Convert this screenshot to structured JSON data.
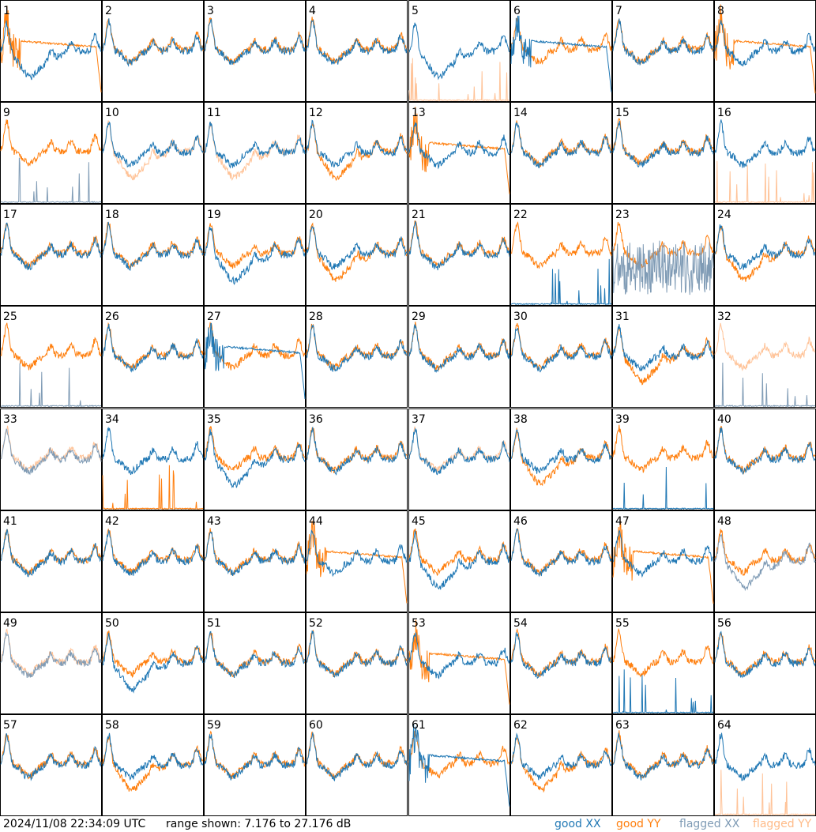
{
  "footer": {
    "timestamp": "2024/11/08 22:34:09 UTC",
    "range_label": "range shown: 7.176 to 27.176 dB",
    "legend": [
      "good XX",
      "good YY",
      "flagged XX",
      "flagged YY"
    ]
  },
  "colors": {
    "good_xx": "#1f77b4",
    "good_yy": "#ff7f0e",
    "flagged_xx": "#7f9bb5",
    "flagged_yy": "#ffc398"
  },
  "chart_data": {
    "type": "line",
    "grid": "8x8 small multiples, one panel per input, spectra of power (dB)",
    "ylim": [
      7.176,
      27.176
    ],
    "panels": [
      {
        "label": "1",
        "xx": "low",
        "yy": "droop"
      },
      {
        "label": "2",
        "xx": "good",
        "yy": "good"
      },
      {
        "label": "3",
        "xx": "good",
        "yy": "good"
      },
      {
        "label": "4",
        "xx": "good",
        "yy": "good"
      },
      {
        "label": "5",
        "xx": "low",
        "yy": "spiky_flagged"
      },
      {
        "label": "6",
        "xx": "droop",
        "yy": "good"
      },
      {
        "label": "7",
        "xx": "good",
        "yy": "good"
      },
      {
        "label": "8",
        "xx": "good",
        "yy": "droop"
      },
      {
        "label": "9",
        "xx": "spiky_flagged",
        "yy": "good"
      },
      {
        "label": "10",
        "xx": "good",
        "yy": "low_flagged"
      },
      {
        "label": "11",
        "xx": "good",
        "yy": "low_flagged"
      },
      {
        "label": "12",
        "xx": "good",
        "yy": "low"
      },
      {
        "label": "13",
        "xx": "good",
        "yy": "droop"
      },
      {
        "label": "14",
        "xx": "good",
        "yy": "good"
      },
      {
        "label": "15",
        "xx": "good",
        "yy": "good"
      },
      {
        "label": "16",
        "xx": "good",
        "yy": "spiky_flagged"
      },
      {
        "label": "17",
        "xx": "good",
        "yy": "good"
      },
      {
        "label": "18",
        "xx": "good",
        "yy": "good"
      },
      {
        "label": "19",
        "xx": "low",
        "yy": "good"
      },
      {
        "label": "20",
        "xx": "good",
        "yy": "low"
      },
      {
        "label": "21",
        "xx": "good",
        "yy": "good"
      },
      {
        "label": "22",
        "xx": "spiky",
        "yy": "good"
      },
      {
        "label": "23",
        "xx": "noisy_flagged",
        "yy": "good"
      },
      {
        "label": "24",
        "xx": "good",
        "yy": "low"
      },
      {
        "label": "25",
        "xx": "spiky_flagged",
        "yy": "good"
      },
      {
        "label": "26",
        "xx": "good",
        "yy": "good"
      },
      {
        "label": "27",
        "xx": "droop",
        "yy": "good"
      },
      {
        "label": "28",
        "xx": "good",
        "yy": "good"
      },
      {
        "label": "29",
        "xx": "good",
        "yy": "good"
      },
      {
        "label": "30",
        "xx": "good",
        "yy": "good"
      },
      {
        "label": "31",
        "xx": "good",
        "yy": "low"
      },
      {
        "label": "32",
        "xx": "spiky_flagged",
        "yy": "good_flagged"
      },
      {
        "label": "33",
        "xx": "good_flagged",
        "yy": "good_flagged"
      },
      {
        "label": "34",
        "xx": "good",
        "yy": "spiky"
      },
      {
        "label": "35",
        "xx": "low",
        "yy": "good"
      },
      {
        "label": "36",
        "xx": "good",
        "yy": "good"
      },
      {
        "label": "37",
        "xx": "good",
        "yy": "good_flagged"
      },
      {
        "label": "38",
        "xx": "good",
        "yy": "low"
      },
      {
        "label": "39",
        "xx": "spiky",
        "yy": "good"
      },
      {
        "label": "40",
        "xx": "good",
        "yy": "good"
      },
      {
        "label": "41",
        "xx": "good",
        "yy": "good"
      },
      {
        "label": "42",
        "xx": "good",
        "yy": "good"
      },
      {
        "label": "43",
        "xx": "good",
        "yy": "good"
      },
      {
        "label": "44",
        "xx": "good",
        "yy": "droop"
      },
      {
        "label": "45",
        "xx": "low",
        "yy": "good"
      },
      {
        "label": "46",
        "xx": "good",
        "yy": "good"
      },
      {
        "label": "47",
        "xx": "good",
        "yy": "droop"
      },
      {
        "label": "48",
        "xx": "low_flagged",
        "yy": "good"
      },
      {
        "label": "49",
        "xx": "good_flagged",
        "yy": "good_flagged"
      },
      {
        "label": "50",
        "xx": "low",
        "yy": "good"
      },
      {
        "label": "51",
        "xx": "good",
        "yy": "good"
      },
      {
        "label": "52",
        "xx": "good",
        "yy": "good"
      },
      {
        "label": "53",
        "xx": "good",
        "yy": "droop"
      },
      {
        "label": "54",
        "xx": "good",
        "yy": "good"
      },
      {
        "label": "55",
        "xx": "spiky",
        "yy": "good"
      },
      {
        "label": "56",
        "xx": "good",
        "yy": "good"
      },
      {
        "label": "57",
        "xx": "good",
        "yy": "good"
      },
      {
        "label": "58",
        "xx": "good",
        "yy": "low"
      },
      {
        "label": "59",
        "xx": "good",
        "yy": "good"
      },
      {
        "label": "60",
        "xx": "good",
        "yy": "good"
      },
      {
        "label": "61",
        "xx": "droop",
        "yy": "good"
      },
      {
        "label": "62",
        "xx": "good",
        "yy": "low"
      },
      {
        "label": "63",
        "xx": "good",
        "yy": "good"
      },
      {
        "label": "64",
        "xx": "good",
        "yy": "spiky_flagged"
      }
    ]
  }
}
